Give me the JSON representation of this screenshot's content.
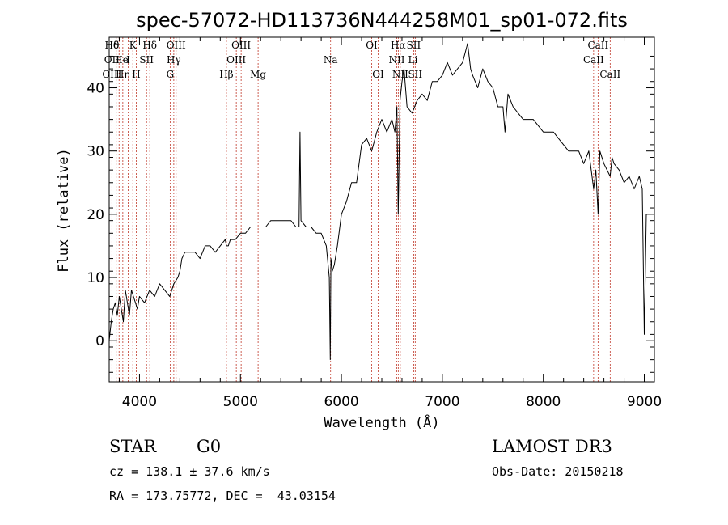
{
  "chart_data": {
    "type": "line",
    "title": "spec-57072-HD113736N444258M01_sp01-072.fits",
    "xlabel": "Wavelength (Å)",
    "ylabel": "Flux (relative)",
    "xlim": [
      3700,
      9100
    ],
    "ylim": [
      -6.5,
      48
    ],
    "xticks": [
      4000,
      5000,
      6000,
      7000,
      8000,
      9000
    ],
    "yticks": [
      0,
      10,
      20,
      30,
      40
    ],
    "grid": false,
    "series": [
      {
        "x": [
          3700,
          3720,
          3740,
          3760,
          3780,
          3800,
          3820,
          3840,
          3860,
          3880,
          3900,
          3920,
          3940,
          3960,
          3980,
          4000,
          4050,
          4100,
          4150,
          4200,
          4250,
          4300,
          4340,
          4380,
          4400,
          4420,
          4450,
          4500,
          4550,
          4600,
          4650,
          4700,
          4750,
          4800,
          4850,
          4861,
          4880,
          4900,
          4950,
          5000,
          5050,
          5100,
          5150,
          5200,
          5250,
          5300,
          5350,
          5400,
          5450,
          5500,
          5550,
          5580,
          5590,
          5600,
          5650,
          5700,
          5750,
          5800,
          5850,
          5880,
          5890,
          5896,
          5910,
          5930,
          5960,
          6000,
          6050,
          6100,
          6150,
          6200,
          6250,
          6300,
          6350,
          6400,
          6450,
          6500,
          6530,
          6550,
          6563,
          6580,
          6600,
          6620,
          6650,
          6700,
          6750,
          6800,
          6850,
          6900,
          6950,
          7000,
          7050,
          7100,
          7150,
          7200,
          7250,
          7280,
          7300,
          7350,
          7400,
          7450,
          7500,
          7550,
          7600,
          7620,
          7650,
          7700,
          7750,
          7800,
          7850,
          7900,
          7950,
          8000,
          8050,
          8100,
          8150,
          8200,
          8250,
          8300,
          8350,
          8400,
          8450,
          8498,
          8520,
          8542,
          8560,
          8600,
          8662,
          8680,
          8700,
          8750,
          8800,
          8850,
          8900,
          8950,
          8980,
          9000,
          9020
        ],
        "y": [
          0,
          3,
          5,
          6,
          4,
          7,
          5,
          3,
          8,
          6,
          4,
          8,
          7,
          6,
          5,
          7,
          6,
          8,
          7,
          9,
          8,
          7,
          9,
          10,
          11,
          13,
          14,
          14,
          14,
          13,
          15,
          15,
          14,
          15,
          16,
          15,
          15,
          16,
          16,
          17,
          17,
          18,
          18,
          18,
          18,
          19,
          19,
          19,
          19,
          19,
          18,
          18,
          33,
          19,
          18,
          18,
          17,
          17,
          15,
          10,
          -3,
          13,
          11,
          12,
          15,
          20,
          22,
          25,
          25,
          31,
          32,
          30,
          33,
          35,
          33,
          35,
          33,
          37,
          20,
          38,
          41,
          43,
          37,
          36,
          38,
          39,
          38,
          41,
          41,
          42,
          44,
          42,
          43,
          44,
          47,
          43,
          42,
          40,
          43,
          41,
          40,
          37,
          37,
          33,
          39,
          37,
          36,
          35,
          35,
          35,
          34,
          33,
          33,
          33,
          32,
          31,
          30,
          30,
          30,
          28,
          30,
          24,
          27,
          20,
          30,
          28,
          26,
          29,
          28,
          27,
          25,
          26,
          24,
          26,
          24,
          1,
          20
        ]
      }
    ],
    "annotations": [
      {
        "label": "Hδ",
        "x": 3727,
        "row": 1
      },
      {
        "label": "OII",
        "x": 3727,
        "row": 2
      },
      {
        "label": "OIII",
        "x": 3727,
        "row": 3
      },
      {
        "label": "θ",
        "x": 3770,
        "row": 1
      },
      {
        "label": "He",
        "x": 3820,
        "row": 2
      },
      {
        "label": "Hη",
        "x": 3835,
        "row": 3
      },
      {
        "label": "K",
        "x": 3934,
        "row": 1
      },
      {
        "label": "I",
        "x": 3888,
        "row": 2
      },
      {
        "label": "H",
        "x": 3968,
        "row": 3
      },
      {
        "label": "SII",
        "x": 4070,
        "row": 2
      },
      {
        "label": "Hδ",
        "x": 4102,
        "row": 1
      },
      {
        "label": "OIII",
        "x": 4363,
        "row": 1
      },
      {
        "label": "Hγ",
        "x": 4340,
        "row": 2
      },
      {
        "label": "G",
        "x": 4304,
        "row": 3
      },
      {
        "label": "Hβ",
        "x": 4861,
        "row": 3
      },
      {
        "label": "OIII",
        "x": 5007,
        "row": 1
      },
      {
        "label": "OIII",
        "x": 4959,
        "row": 2
      },
      {
        "label": "Mg",
        "x": 5175,
        "row": 3
      },
      {
        "label": "Na",
        "x": 5893,
        "row": 2
      },
      {
        "label": "OI",
        "x": 6300,
        "row": 1
      },
      {
        "label": "OI",
        "x": 6364,
        "row": 3
      },
      {
        "label": "Hα",
        "x": 6563,
        "row": 1
      },
      {
        "label": "NII",
        "x": 6548,
        "row": 2
      },
      {
        "label": "NII",
        "x": 6583,
        "row": 3
      },
      {
        "label": "SII",
        "x": 6716,
        "row": 1
      },
      {
        "label": "Li",
        "x": 6708,
        "row": 2
      },
      {
        "label": "SII",
        "x": 6731,
        "row": 3
      },
      {
        "label": "CaII",
        "x": 8542,
        "row": 1
      },
      {
        "label": "CaII",
        "x": 8498,
        "row": 2
      },
      {
        "label": "CaII",
        "x": 8662,
        "row": 3
      }
    ],
    "vlines": [
      3727,
      3770,
      3798,
      3835,
      3889,
      3934,
      3968,
      4070,
      4102,
      4304,
      4340,
      4363,
      4861,
      4959,
      5007,
      5175,
      5893,
      6300,
      6364,
      6548,
      6563,
      6583,
      6708,
      6716,
      6731,
      8498,
      8542,
      8662
    ],
    "vline_color": "#c0392b"
  },
  "info": {
    "class": "STAR",
    "subclass": "G0",
    "survey": "LAMOST DR3",
    "cz": "cz = 138.1 ± 37.6 km/s",
    "obsdate": "Obs-Date: 20150218",
    "coords": "RA = 173.75772, DEC =  43.03154"
  }
}
